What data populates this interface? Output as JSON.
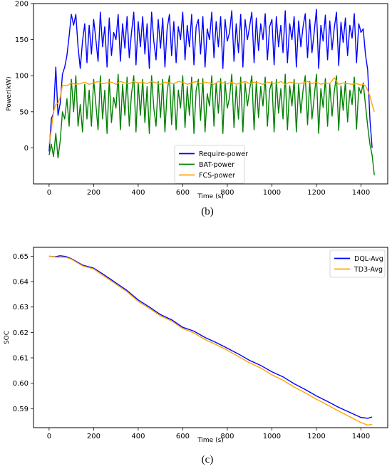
{
  "chart_data": [
    {
      "type": "line",
      "caption": "(b)",
      "xlabel": "Time (s)",
      "ylabel": "Power(kW)",
      "xlim": [
        -70,
        1520
      ],
      "ylim": [
        -50,
        200
      ],
      "xticks": [
        0,
        200,
        400,
        600,
        800,
        1000,
        1200,
        1400
      ],
      "yticks": [
        0,
        50,
        100,
        150,
        200
      ],
      "legend_position": "lower-center",
      "series": [
        {
          "name": "Require-power",
          "color": "#0000ff",
          "x": [
            0,
            10,
            20,
            30,
            40,
            50,
            60,
            70,
            80,
            90,
            100,
            110,
            120,
            130,
            140,
            150,
            160,
            170,
            180,
            190,
            200,
            210,
            220,
            230,
            240,
            250,
            260,
            270,
            280,
            290,
            300,
            310,
            320,
            330,
            340,
            350,
            360,
            370,
            380,
            390,
            400,
            410,
            420,
            430,
            440,
            450,
            460,
            470,
            480,
            490,
            500,
            510,
            520,
            530,
            540,
            550,
            560,
            570,
            580,
            590,
            600,
            610,
            620,
            630,
            640,
            650,
            660,
            670,
            680,
            690,
            700,
            710,
            720,
            730,
            740,
            750,
            760,
            770,
            780,
            790,
            800,
            810,
            820,
            830,
            840,
            850,
            860,
            870,
            880,
            890,
            900,
            910,
            920,
            930,
            940,
            950,
            960,
            970,
            980,
            990,
            1000,
            1010,
            1020,
            1030,
            1040,
            1050,
            1060,
            1070,
            1080,
            1090,
            1100,
            1110,
            1120,
            1130,
            1140,
            1150,
            1160,
            1170,
            1180,
            1190,
            1200,
            1210,
            1220,
            1230,
            1240,
            1250,
            1260,
            1270,
            1280,
            1290,
            1300,
            1310,
            1320,
            1330,
            1340,
            1350,
            1360,
            1370,
            1380,
            1390,
            1400,
            1410,
            1420,
            1430,
            1440,
            1450
          ],
          "values": [
            -5,
            40,
            48,
            112,
            45,
            62,
            102,
            112,
            128,
            155,
            185,
            170,
            185,
            140,
            110,
            148,
            172,
            118,
            170,
            130,
            178,
            150,
            120,
            188,
            140,
            168,
            112,
            180,
            128,
            160,
            150,
            185,
            120,
            172,
            138,
            182,
            125,
            160,
            188,
            115,
            175,
            140,
            182,
            130,
            172,
            110,
            188,
            148,
            122,
            178,
            138,
            180,
            112,
            165,
            185,
            128,
            175,
            118,
            168,
            150,
            188,
            122,
            170,
            140,
            185,
            115,
            168,
            178,
            130,
            182,
            112,
            165,
            150,
            188,
            125,
            175,
            140,
            182,
            110,
            178,
            148,
            160,
            190,
            120,
            172,
            132,
            185,
            112,
            178,
            150,
            168,
            188,
            118,
            180,
            135,
            172,
            150,
            186,
            122,
            168,
            178,
            115,
            182,
            140,
            170,
            132,
            190,
            118,
            172,
            150,
            182,
            112,
            176,
            140,
            168,
            186,
            125,
            178,
            132,
            160,
            192,
            110,
            170,
            148,
            184,
            122,
            176,
            136,
            166,
            188,
            114,
            174,
            146,
            180,
            128,
            170,
            152,
            186,
            118,
            172,
            160,
            165,
            130,
            108,
            40,
            0
          ]
        },
        {
          "name": "BAT-power",
          "color": "#008000",
          "x": [
            0,
            10,
            20,
            30,
            40,
            50,
            60,
            70,
            80,
            90,
            100,
            110,
            120,
            130,
            140,
            150,
            160,
            170,
            180,
            190,
            200,
            210,
            220,
            230,
            240,
            250,
            260,
            270,
            280,
            290,
            300,
            310,
            320,
            330,
            340,
            350,
            360,
            370,
            380,
            390,
            400,
            410,
            420,
            430,
            440,
            450,
            460,
            470,
            480,
            490,
            500,
            510,
            520,
            530,
            540,
            550,
            560,
            570,
            580,
            590,
            600,
            610,
            620,
            630,
            640,
            650,
            660,
            670,
            680,
            690,
            700,
            710,
            720,
            730,
            740,
            750,
            760,
            770,
            780,
            790,
            800,
            810,
            820,
            830,
            840,
            850,
            860,
            870,
            880,
            890,
            900,
            910,
            920,
            930,
            940,
            950,
            960,
            970,
            980,
            990,
            1000,
            1010,
            1020,
            1030,
            1040,
            1050,
            1060,
            1070,
            1080,
            1090,
            1100,
            1110,
            1120,
            1130,
            1140,
            1150,
            1160,
            1170,
            1180,
            1190,
            1200,
            1210,
            1220,
            1230,
            1240,
            1250,
            1260,
            1270,
            1280,
            1290,
            1300,
            1310,
            1320,
            1330,
            1340,
            1350,
            1360,
            1370,
            1380,
            1390,
            1400,
            1410,
            1420,
            1430,
            1440,
            1450,
            1460
          ],
          "values": [
            -10,
            5,
            -12,
            20,
            -14,
            10,
            50,
            40,
            68,
            30,
            95,
            50,
            100,
            30,
            60,
            22,
            88,
            40,
            80,
            30,
            95,
            60,
            25,
            100,
            40,
            80,
            20,
            95,
            35,
            70,
            55,
            102,
            25,
            88,
            45,
            98,
            30,
            75,
            100,
            22,
            90,
            45,
            95,
            35,
            85,
            20,
            100,
            55,
            30,
            92,
            42,
            95,
            22,
            78,
            100,
            32,
            88,
            25,
            80,
            55,
            100,
            28,
            85,
            45,
            98,
            20,
            80,
            95,
            38,
            96,
            22,
            75,
            58,
            100,
            30,
            90,
            48,
            96,
            20,
            92,
            55,
            70,
            102,
            28,
            86,
            40,
            98,
            22,
            90,
            58,
            80,
            100,
            25,
            92,
            42,
            85,
            58,
            98,
            30,
            80,
            92,
            22,
            95,
            48,
            82,
            40,
            102,
            25,
            86,
            58,
            95,
            22,
            88,
            48,
            80,
            100,
            32,
            92,
            40,
            70,
            102,
            20,
            82,
            56,
            96,
            30,
            88,
            44,
            78,
            100,
            24,
            86,
            52,
            92,
            36,
            80,
            60,
            98,
            26,
            84,
            75,
            90,
            60,
            30,
            5,
            -10,
            -38
          ]
        },
        {
          "name": "FCS-power",
          "color": "#ffa500",
          "x": [
            0,
            10,
            20,
            30,
            40,
            50,
            60,
            80,
            100,
            120,
            140,
            160,
            180,
            200,
            220,
            240,
            260,
            280,
            300,
            320,
            340,
            360,
            380,
            400,
            420,
            440,
            460,
            480,
            500,
            520,
            540,
            560,
            580,
            600,
            620,
            640,
            660,
            680,
            700,
            720,
            740,
            760,
            780,
            800,
            820,
            840,
            860,
            880,
            900,
            920,
            940,
            960,
            980,
            1000,
            1020,
            1040,
            1060,
            1080,
            1100,
            1120,
            1140,
            1160,
            1180,
            1200,
            1220,
            1240,
            1260,
            1280,
            1300,
            1320,
            1340,
            1360,
            1380,
            1400,
            1410,
            1420,
            1430,
            1440,
            1450,
            1460
          ],
          "values": [
            5,
            25,
            50,
            60,
            62,
            70,
            87,
            86,
            90,
            88,
            89,
            91,
            88,
            90,
            92,
            89,
            90,
            91,
            88,
            92,
            90,
            89,
            92,
            90,
            91,
            89,
            92,
            90,
            88,
            91,
            90,
            89,
            92,
            91,
            88,
            90,
            92,
            89,
            91,
            90,
            88,
            92,
            90,
            89,
            91,
            88,
            90,
            92,
            89,
            91,
            90,
            88,
            91,
            90,
            89,
            92,
            88,
            91,
            90,
            89,
            90,
            92,
            89,
            91,
            88,
            90,
            89,
            97,
            88,
            90,
            89,
            88,
            89,
            87,
            88,
            86,
            80,
            72,
            60,
            50
          ]
        }
      ]
    },
    {
      "type": "line",
      "caption": "(c)",
      "xlabel": "Time (s)",
      "ylabel": "SOC",
      "xlim": [
        -70,
        1520
      ],
      "ylim": [
        0.5825,
        0.6535
      ],
      "xticks": [
        0,
        200,
        400,
        600,
        800,
        1000,
        1200,
        1400
      ],
      "yticks": [
        0.59,
        0.6,
        0.61,
        0.62,
        0.63,
        0.64,
        0.65
      ],
      "ytick_labels": [
        "0.59",
        "0.60",
        "0.61",
        "0.62",
        "0.63",
        "0.64",
        "0.65"
      ],
      "legend_position": "top-right",
      "series": [
        {
          "name": "DQL-Avg",
          "color": "#0000ff",
          "x": [
            0,
            25,
            50,
            75,
            100,
            150,
            200,
            250,
            300,
            350,
            400,
            450,
            500,
            550,
            600,
            650,
            700,
            750,
            800,
            850,
            900,
            950,
            1000,
            1050,
            1100,
            1150,
            1200,
            1250,
            1300,
            1350,
            1400,
            1430,
            1450
          ],
          "values": [
            0.65,
            0.6498,
            0.6502,
            0.6499,
            0.649,
            0.6465,
            0.6453,
            0.6425,
            0.6395,
            0.6365,
            0.6328,
            0.63,
            0.627,
            0.625,
            0.622,
            0.6205,
            0.618,
            0.616,
            0.6138,
            0.6115,
            0.609,
            0.607,
            0.6045,
            0.6025,
            0.5998,
            0.5975,
            0.595,
            0.5928,
            0.5905,
            0.5885,
            0.5865,
            0.5862,
            0.5867
          ]
        },
        {
          "name": "TD3-Avg",
          "color": "#ffa500",
          "x": [
            0,
            25,
            50,
            75,
            100,
            150,
            200,
            250,
            300,
            350,
            400,
            450,
            500,
            550,
            600,
            650,
            700,
            750,
            800,
            850,
            900,
            950,
            1000,
            1050,
            1100,
            1150,
            1200,
            1250,
            1300,
            1350,
            1400,
            1430,
            1450
          ],
          "values": [
            0.65,
            0.6497,
            0.6496,
            0.6496,
            0.6488,
            0.6462,
            0.645,
            0.642,
            0.639,
            0.636,
            0.6322,
            0.6295,
            0.6265,
            0.6245,
            0.6215,
            0.6198,
            0.6172,
            0.6152,
            0.613,
            0.6105,
            0.608,
            0.606,
            0.6033,
            0.6012,
            0.5985,
            0.5962,
            0.5937,
            0.5914,
            0.589,
            0.5868,
            0.5845,
            0.5835,
            0.5838
          ]
        }
      ]
    }
  ]
}
